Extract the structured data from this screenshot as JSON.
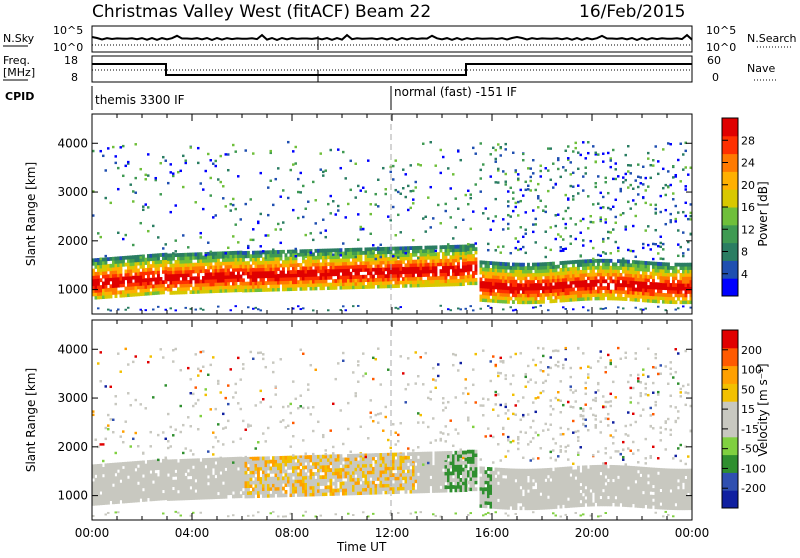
{
  "header": {
    "radar": "Christmas Valley West (fitACF)",
    "beam": "Beam 22",
    "date": "16/Feb/2015"
  },
  "top_panels": {
    "nsky_label": "N.Sky",
    "nsky_ticks": [
      "10^5",
      "10^0"
    ],
    "nsearch_label": "N.Search",
    "nsearch_ticks": [
      "10^5",
      "10^0"
    ],
    "freq_label_1": "Freq.",
    "freq_label_2": "[MHz]",
    "freq_ticks": [
      "18",
      "8"
    ],
    "nave_label": "Nave",
    "nave_ticks": [
      "60",
      "0"
    ],
    "cpid_label": "CPID",
    "cpid_segments": [
      "themis 3300 IF",
      "normal (fast) -151 IF"
    ]
  },
  "chart_data": [
    {
      "type": "heatmap",
      "name": "power",
      "ylabel": "Slant Range [km]",
      "yticks": [
        "1000",
        "2000",
        "3000",
        "4000"
      ],
      "ylim": [
        500,
        4600
      ],
      "xlim_hours": [
        0,
        24
      ],
      "colorbar_label": "Power [dB]",
      "colorbar_ticks": [
        "28",
        "24",
        "20",
        "16",
        "12",
        "8",
        "4"
      ],
      "colorbar_colors": [
        "#0000ff",
        "#1f4fb0",
        "#2a7d62",
        "#3f9a52",
        "#6fbf3a",
        "#d8c800",
        "#ffb000",
        "#ff7a00",
        "#ff3000",
        "#e00000"
      ]
    },
    {
      "type": "heatmap",
      "name": "velocity",
      "ylabel": "Slant Range [km]",
      "yticks": [
        "1000",
        "2000",
        "3000",
        "4000"
      ],
      "ylim": [
        500,
        4600
      ],
      "xlim_hours": [
        0,
        24
      ],
      "colorbar_label": "Velocity [m s⁻¹]",
      "colorbar_ticks": [
        "200",
        "100",
        "50",
        "15",
        "-15",
        "-50",
        "-100",
        "-200"
      ],
      "colorbar_colors": [
        "#e00000",
        "#ff5a00",
        "#ffa000",
        "#f2c000",
        "#c8c8c0",
        "#c8c8c0",
        "#80d040",
        "#2f8f2f",
        "#3050b0",
        "#1020a0"
      ]
    }
  ],
  "xaxis": {
    "ticks": [
      "00:00",
      "04:00",
      "08:00",
      "12:00",
      "16:00",
      "20:00",
      "00:00"
    ],
    "label": "Time UT"
  }
}
